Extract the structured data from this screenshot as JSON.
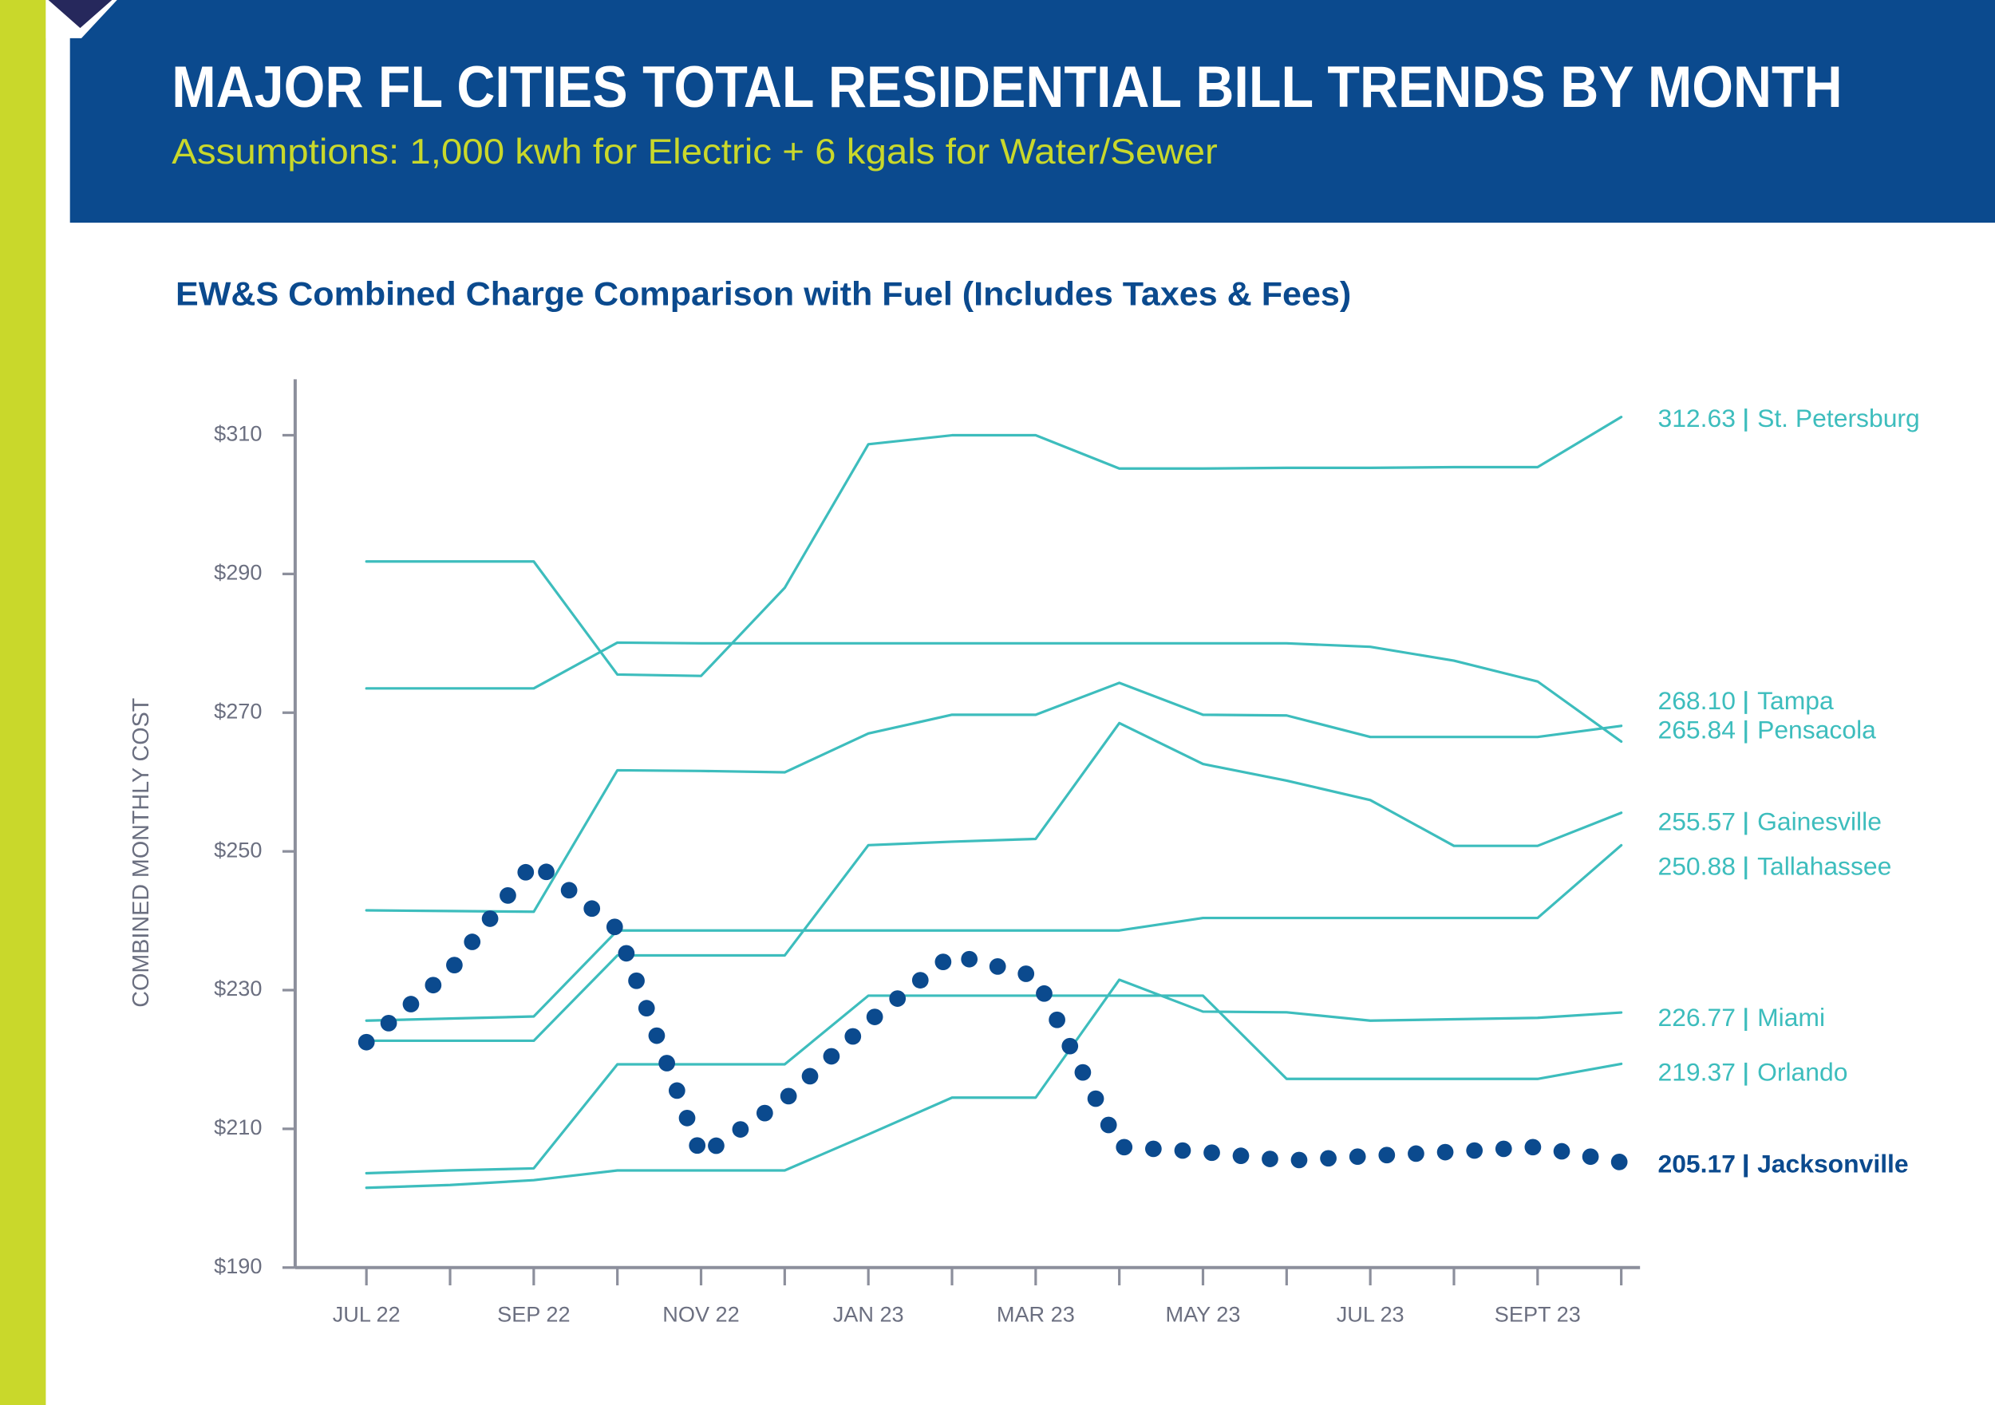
{
  "chart_data": {
    "type": "line",
    "title": "MAJOR FL CITIES TOTAL RESIDENTIAL BILL TRENDS BY MONTH",
    "subtitle": "Assumptions: 1,000 kwh for Electric + 6 kgals for Water/Sewer",
    "heading": "EW&S Combined Charge Comparison with Fuel (Includes Taxes & Fees)",
    "ylabel": "COMBINED MONTHLY COST",
    "categories": [
      "JUL 22",
      null,
      "SEP 22",
      null,
      "NOV 22",
      null,
      "JAN 23",
      null,
      "MAR 23",
      null,
      "MAY 23",
      null,
      "JUL 23",
      null,
      "SEPT 23",
      null
    ],
    "ylim": [
      190,
      318
    ],
    "yticks": [
      {
        "value": 190,
        "label": "$190"
      },
      {
        "value": 210,
        "label": "$210"
      },
      {
        "value": 230,
        "label": "$230"
      },
      {
        "value": 250,
        "label": "$250"
      },
      {
        "value": 270,
        "label": "$270"
      },
      {
        "value": 290,
        "label": "$290"
      },
      {
        "value": 310,
        "label": "$310"
      }
    ],
    "series": [
      {
        "name": "St. Petersburg",
        "color": "#3dbdbd",
        "values": [
          291.8,
          291.8,
          291.8,
          275.5,
          275.3,
          288.0,
          308.7,
          310.0,
          310.0,
          305.2,
          305.2,
          305.3,
          305.3,
          305.4,
          305.4,
          312.63
        ],
        "value_labels": [
          null,
          null,
          null,
          null,
          null,
          null,
          null,
          null,
          null,
          null,
          null,
          null,
          null,
          null,
          null,
          "312.63"
        ]
      },
      {
        "name": "Tampa",
        "color": "#3dbdbd",
        "values": [
          241.5,
          241.4,
          241.3,
          261.7,
          261.6,
          261.4,
          267.0,
          269.7,
          269.7,
          274.3,
          269.7,
          269.6,
          266.5,
          266.5,
          266.5,
          268.1
        ],
        "value_labels": [
          null,
          null,
          null,
          null,
          null,
          null,
          null,
          null,
          null,
          null,
          null,
          null,
          null,
          null,
          null,
          "268.10"
        ]
      },
      {
        "name": "Pensacola",
        "color": "#3dbdbd",
        "values": [
          273.5,
          273.5,
          273.5,
          280.1,
          280.0,
          280.0,
          280.0,
          280.0,
          280.0,
          280.0,
          280.0,
          280.0,
          279.5,
          277.5,
          274.5,
          265.84
        ],
        "value_labels": [
          null,
          null,
          null,
          null,
          null,
          null,
          null,
          null,
          null,
          null,
          null,
          null,
          null,
          null,
          null,
          "265.84"
        ]
      },
      {
        "name": "Gainesville",
        "color": "#3dbdbd",
        "values": [
          222.7,
          222.7,
          222.7,
          235.0,
          235.0,
          235.0,
          250.9,
          251.4,
          251.8,
          268.5,
          262.6,
          260.2,
          257.4,
          250.8,
          250.8,
          255.57
        ],
        "value_labels": [
          null,
          null,
          null,
          null,
          null,
          null,
          null,
          null,
          null,
          null,
          null,
          null,
          null,
          null,
          null,
          "255.57"
        ]
      },
      {
        "name": "Tallahassee",
        "color": "#3dbdbd",
        "values": [
          225.6,
          225.9,
          226.2,
          238.6,
          238.6,
          238.6,
          238.6,
          238.6,
          238.6,
          238.6,
          240.4,
          240.4,
          240.4,
          240.4,
          240.4,
          250.88
        ],
        "value_labels": [
          null,
          null,
          null,
          null,
          null,
          null,
          null,
          null,
          null,
          null,
          null,
          null,
          null,
          null,
          null,
          "250.88"
        ]
      },
      {
        "name": "Miami",
        "color": "#3dbdbd",
        "values": [
          201.5,
          201.9,
          202.6,
          204.0,
          204.0,
          204.0,
          209.2,
          214.5,
          214.5,
          231.5,
          226.9,
          226.8,
          225.6,
          225.8,
          226.0,
          226.77
        ],
        "value_labels": [
          null,
          null,
          null,
          null,
          null,
          null,
          null,
          null,
          null,
          null,
          null,
          null,
          null,
          null,
          null,
          "226.77"
        ]
      },
      {
        "name": "Orlando",
        "color": "#3dbdbd",
        "values": [
          203.6,
          204.0,
          204.3,
          219.3,
          219.3,
          219.3,
          229.2,
          229.2,
          229.2,
          229.2,
          229.2,
          217.2,
          217.2,
          217.2,
          217.2,
          219.37
        ],
        "value_labels": [
          null,
          null,
          null,
          null,
          null,
          null,
          null,
          null,
          null,
          null,
          null,
          null,
          null,
          null,
          null,
          "219.37"
        ]
      },
      {
        "name": "Jacksonville",
        "color": "#0b4a8e",
        "style": "dotted",
        "values": [
          222.5,
          232.8,
          248.5,
          238.8,
          206.1,
          214.2,
          225.4,
          235.1,
          232.0,
          207.4,
          206.7,
          205.4,
          206.1,
          206.7,
          207.4,
          205.17
        ],
        "value_labels": [
          null,
          null,
          null,
          null,
          null,
          null,
          null,
          null,
          null,
          null,
          null,
          null,
          null,
          null,
          null,
          "205.17"
        ]
      }
    ]
  }
}
